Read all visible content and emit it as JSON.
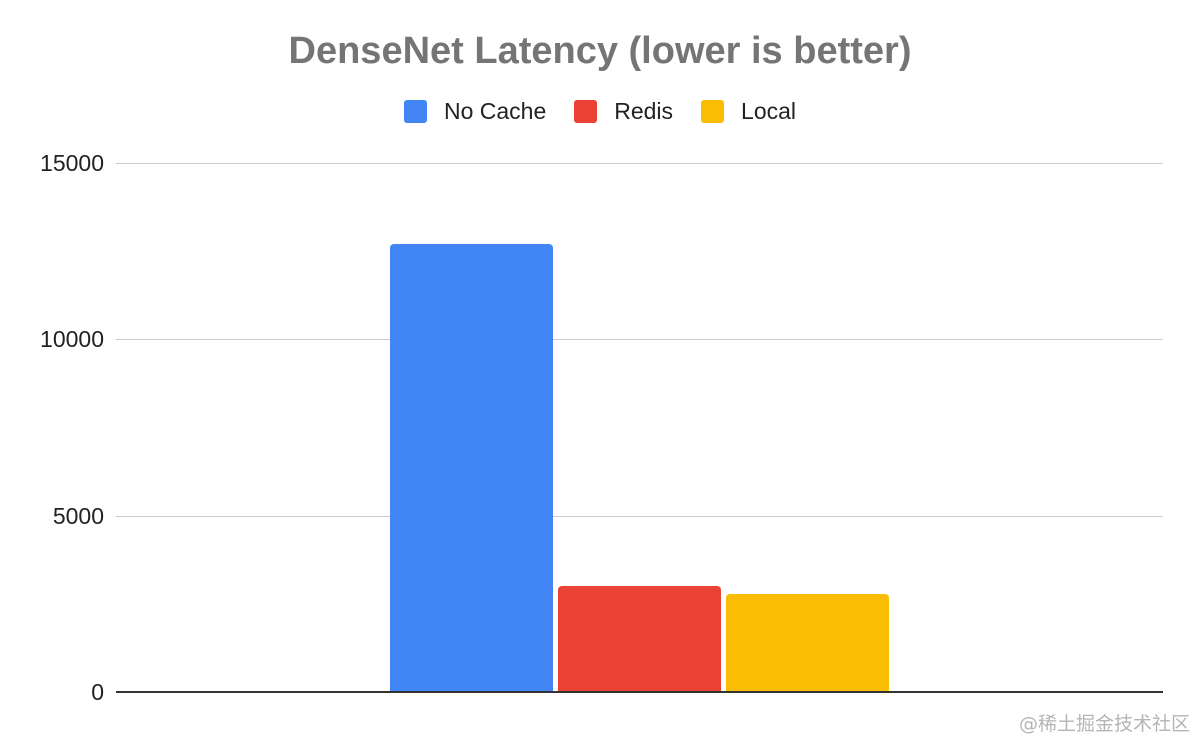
{
  "chart_data": {
    "type": "bar",
    "title": "DenseNet Latency (lower is better)",
    "xlabel": "",
    "ylabel": "",
    "categories": [
      ""
    ],
    "series": [
      {
        "name": "No Cache",
        "color": "#4285f4",
        "values": [
          12700
        ]
      },
      {
        "name": "Redis",
        "color": "#ea4335",
        "values": [
          3000
        ]
      },
      {
        "name": "Local",
        "color": "#fbbc04",
        "values": [
          2780
        ]
      }
    ],
    "ylim": [
      0,
      15000
    ],
    "yticks": [
      0,
      5000,
      10000,
      15000
    ],
    "ytick_labels": [
      "0",
      "5000",
      "10000",
      "15000"
    ],
    "grid": true,
    "legend_position": "top"
  },
  "legend": {
    "items": [
      {
        "label": "No Cache",
        "color": "#4285f4"
      },
      {
        "label": "Redis",
        "color": "#ea4335"
      },
      {
        "label": "Local",
        "color": "#fbbc04"
      }
    ]
  },
  "watermark": "@稀土掘金技术社区"
}
